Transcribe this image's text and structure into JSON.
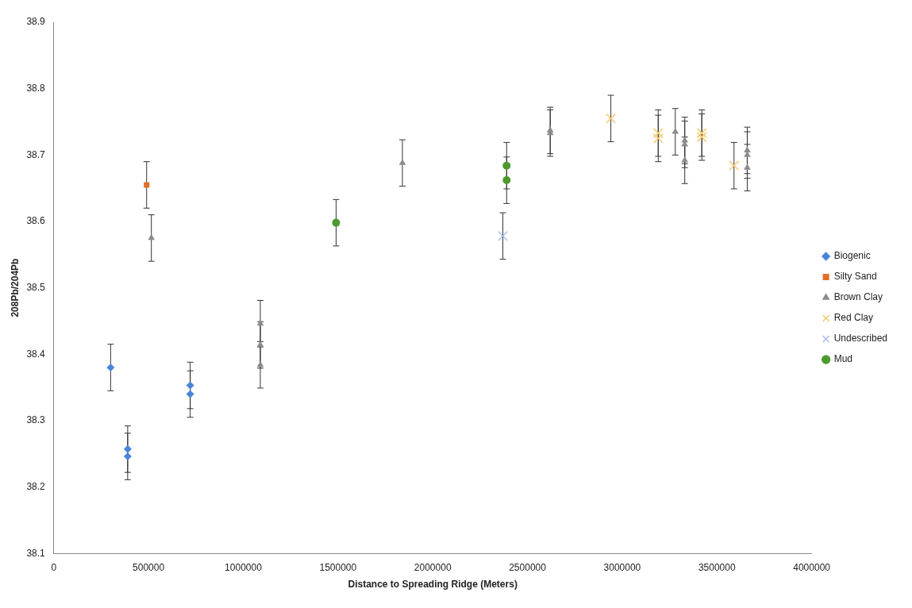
{
  "chart_data": {
    "type": "scatter",
    "xlabel": "Distance to Spreading Ridge (Meters)",
    "ylabel": "208Pb/204Pb",
    "xlim": [
      0,
      4000000
    ],
    "xticks": [
      0,
      500000,
      1000000,
      1500000,
      2000000,
      2500000,
      3000000,
      3500000,
      4000000
    ],
    "ylim": [
      38.1,
      38.9
    ],
    "yticks": [
      38.1,
      38.2,
      38.3,
      38.4,
      38.5,
      38.6,
      38.7,
      38.8,
      38.9
    ],
    "grid": false,
    "legend": "right",
    "series": [
      {
        "name": "Biogenic",
        "color": "#4a86d8",
        "marker": "diamond",
        "x": [
          300000,
          390000,
          390000,
          720000,
          720000
        ],
        "values": [
          38.38,
          38.257,
          38.246,
          38.353,
          38.34
        ],
        "errors": [
          0.035,
          0.035,
          0.035,
          0.035,
          0.035
        ]
      },
      {
        "name": "Silty Sand",
        "color": "#e0702a",
        "marker": "square",
        "x": [
          490000
        ],
        "values": [
          38.655
        ],
        "errors": [
          0.035
        ]
      },
      {
        "name": "Brown Clay",
        "color": "#8c8c8c",
        "marker": "triangle",
        "x": [
          515000,
          1090000,
          1090000,
          1090000,
          1840000,
          2620000,
          2620000,
          3280000,
          3330000,
          3330000,
          3330000,
          3660000,
          3660000,
          3660000
        ],
        "values": [
          38.575,
          38.446,
          38.414,
          38.384,
          38.688,
          38.737,
          38.733,
          38.735,
          38.722,
          38.716,
          38.692,
          38.707,
          38.7,
          38.681
        ],
        "errors": [
          0.035,
          0.035,
          0.035,
          0.035,
          0.035,
          0.035,
          0.035,
          0.035,
          0.035,
          0.035,
          0.035,
          0.035,
          0.035,
          0.035
        ]
      },
      {
        "name": "Red Clay",
        "color": "#f5c96a",
        "marker": "cross",
        "x": [
          2940000,
          3190000,
          3190000,
          3420000,
          3420000,
          3590000
        ],
        "values": [
          38.755,
          38.733,
          38.725,
          38.733,
          38.727,
          38.684
        ],
        "errors": [
          0.035,
          0.035,
          0.035,
          0.035,
          0.035,
          0.035
        ]
      },
      {
        "name": "Undescribed",
        "color": "#a9bde6",
        "marker": "cross",
        "x": [
          2370000
        ],
        "values": [
          38.578
        ],
        "errors": [
          0.035
        ]
      },
      {
        "name": "Mud",
        "color": "#4e9a2e",
        "marker": "circle",
        "x": [
          1490000,
          2390000,
          2390000
        ],
        "values": [
          38.598,
          38.684,
          38.662
        ],
        "errors": [
          0.035,
          0.035,
          0.035
        ]
      }
    ]
  }
}
